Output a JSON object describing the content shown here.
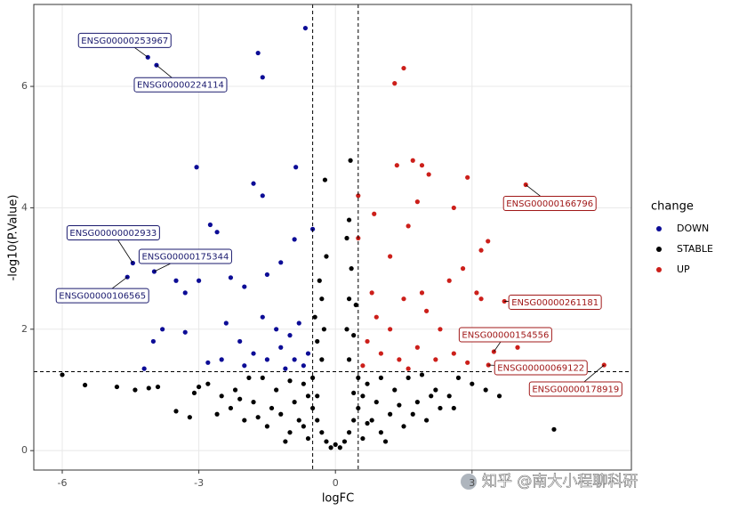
{
  "chart_data": {
    "type": "scatter",
    "xlabel": "logFC",
    "ylabel": "-log10(P.Value)",
    "xlim": [
      -6.625,
      6.5
    ],
    "ylim": [
      -0.32,
      7.35
    ],
    "xticks": [
      -6,
      -3,
      0,
      3
    ],
    "yticks": [
      0,
      2,
      4,
      6
    ],
    "grid": true,
    "vlines": [
      -0.5,
      0.5
    ],
    "hlines": [
      1.3
    ],
    "legend_title": "change",
    "legend_position": "right",
    "series": [
      {
        "name": "DOWN",
        "color": "#0c0c96",
        "x": [
          -0.66,
          -1.7,
          -1.6,
          -4.12,
          -3.93,
          -3.05,
          -0.87,
          -1.8,
          -1.6,
          -2.75,
          -2.6,
          -0.5,
          -0.9,
          -4.45,
          -3.98,
          -4.57,
          -3.5,
          -3,
          -2.3,
          -2,
          -1.5,
          -1.2,
          -3.3,
          -4,
          -3.3,
          -2.4,
          -2.1,
          -1.8,
          -1.5,
          -1.2,
          -0.9,
          -0.7,
          -2.5,
          -2.8,
          -1.6,
          -1.3,
          -1,
          -0.8,
          -2,
          -1.1,
          -0.6,
          -3.8,
          -4.2
        ],
        "y": [
          6.96,
          6.55,
          6.15,
          6.48,
          6.35,
          4.67,
          4.67,
          4.4,
          4.2,
          3.72,
          3.6,
          3.65,
          3.48,
          3.09,
          2.95,
          2.86,
          2.8,
          2.8,
          2.85,
          2.7,
          2.9,
          3.1,
          2.6,
          1.8,
          1.95,
          2.1,
          1.8,
          1.6,
          1.5,
          1.7,
          1.5,
          1.4,
          1.5,
          1.45,
          2.2,
          2.0,
          1.9,
          2.1,
          1.4,
          1.35,
          1.6,
          2.0,
          1.35
        ]
      },
      {
        "name": "STABLE",
        "color": "#000000",
        "x": [
          -0.1,
          0.1,
          0,
          -0.2,
          0.2,
          -0.3,
          0.3,
          -0.4,
          0.4,
          -0.5,
          0.5,
          -0.6,
          0.6,
          -0.7,
          0.7,
          -0.3,
          0.3,
          -0.25,
          0.25,
          -0.3,
          0.3,
          -0.35,
          0.35,
          -0.2,
          0.25,
          -0.23,
          0.33,
          0.3,
          -0.45,
          0.45,
          -0.4,
          0.4,
          -1,
          1,
          -1.2,
          1.2,
          -1.5,
          1.5,
          -1.8,
          1.8,
          -2,
          2,
          -2.2,
          2.2,
          -0.8,
          0.8,
          -1.3,
          1.3,
          -1.6,
          1.6,
          -0.9,
          0.9,
          -2.5,
          2.5,
          -2.8,
          2.7,
          -1.1,
          1.1,
          -0.6,
          0.6,
          -2.3,
          2.3,
          -3,
          3,
          -1.9,
          1.9,
          -0.5,
          0.5,
          -0.4,
          0.4,
          -1.4,
          1.4,
          -1.7,
          1.7,
          -2.1,
          2.1,
          -0.7,
          0.7,
          -1,
          1,
          -2.6,
          2.6,
          -6,
          -5.5,
          -4.8,
          -4.4,
          -4.1,
          -3.9,
          -3.5,
          -3.1,
          -3.2,
          3.3,
          3.6,
          4.8
        ],
        "y": [
          0.05,
          0.05,
          0.1,
          0.15,
          0.15,
          0.3,
          0.3,
          0.5,
          0.5,
          0.7,
          0.7,
          0.9,
          0.9,
          1.1,
          1.1,
          1.5,
          1.5,
          2.0,
          2.0,
          2.5,
          2.5,
          2.8,
          3.0,
          3.2,
          3.5,
          4.46,
          4.78,
          3.8,
          2.2,
          2.4,
          1.8,
          1.9,
          0.3,
          0.3,
          0.6,
          0.6,
          0.4,
          0.4,
          0.8,
          0.8,
          0.5,
          0.5,
          1.0,
          1.0,
          0.5,
          0.5,
          1.0,
          1.0,
          1.2,
          1.2,
          0.8,
          0.8,
          0.9,
          0.9,
          1.1,
          1.2,
          0.15,
          0.15,
          0.2,
          0.2,
          0.7,
          0.7,
          1.05,
          1.1,
          1.2,
          1.25,
          1.2,
          1.2,
          0.9,
          0.95,
          0.7,
          0.75,
          0.55,
          0.6,
          0.85,
          0.9,
          0.4,
          0.45,
          1.15,
          1.2,
          0.6,
          0.7,
          1.25,
          1.08,
          1.05,
          1.0,
          1.03,
          1.05,
          0.65,
          0.95,
          0.55,
          1.0,
          0.9,
          0.35
        ]
      },
      {
        "name": "UP",
        "color": "#cc1f1a",
        "x": [
          1.3,
          1.5,
          1.35,
          1.9,
          1.7,
          2.05,
          2.9,
          4.18,
          0.5,
          1.8,
          2.6,
          0.85,
          1.6,
          3.35,
          0.5,
          1.2,
          2.8,
          3.2,
          3.71,
          3.1,
          3.2,
          2.5,
          0.8,
          1.5,
          2,
          2.3,
          1.2,
          0.7,
          1,
          1.4,
          1.8,
          2.2,
          0.6,
          1.6,
          2.6,
          3.48,
          3.36,
          5.9,
          2.9,
          4,
          3.3,
          1.9,
          0.9
        ],
        "y": [
          6.05,
          6.3,
          4.7,
          4.7,
          4.78,
          4.55,
          4.5,
          4.38,
          4.2,
          4.1,
          4.0,
          3.9,
          3.7,
          3.45,
          3.5,
          3.2,
          3.0,
          3.3,
          2.46,
          2.6,
          2.5,
          2.8,
          2.6,
          2.5,
          2.3,
          2.0,
          2.0,
          1.8,
          1.6,
          1.5,
          1.7,
          1.5,
          1.4,
          1.35,
          1.6,
          1.63,
          1.41,
          1.41,
          1.45,
          1.7,
          1.9,
          2.6,
          2.2
        ]
      }
    ],
    "annotations": [
      {
        "text": "ENSG00000253967",
        "x": -4.12,
        "y": 6.48
      },
      {
        "text": "ENSG00000224114",
        "x": -3.93,
        "y": 6.35
      },
      {
        "text": "ENSG00000002933",
        "x": -4.45,
        "y": 3.09
      },
      {
        "text": "ENSG00000175344",
        "x": -3.98,
        "y": 2.95
      },
      {
        "text": "ENSG00000106565",
        "x": -4.57,
        "y": 2.86
      },
      {
        "text": "ENSG00000166796",
        "x": 4.18,
        "y": 4.38
      },
      {
        "text": "ENSG00000261181",
        "x": 3.71,
        "y": 2.46
      },
      {
        "text": "ENSG00000154556",
        "x": 3.48,
        "y": 1.63
      },
      {
        "text": "ENSG00000069122",
        "x": 3.36,
        "y": 1.41
      },
      {
        "text": "ENSG00000178919",
        "x": 5.9,
        "y": 1.41
      }
    ]
  },
  "watermark": "知乎 @南大小程聊科研"
}
